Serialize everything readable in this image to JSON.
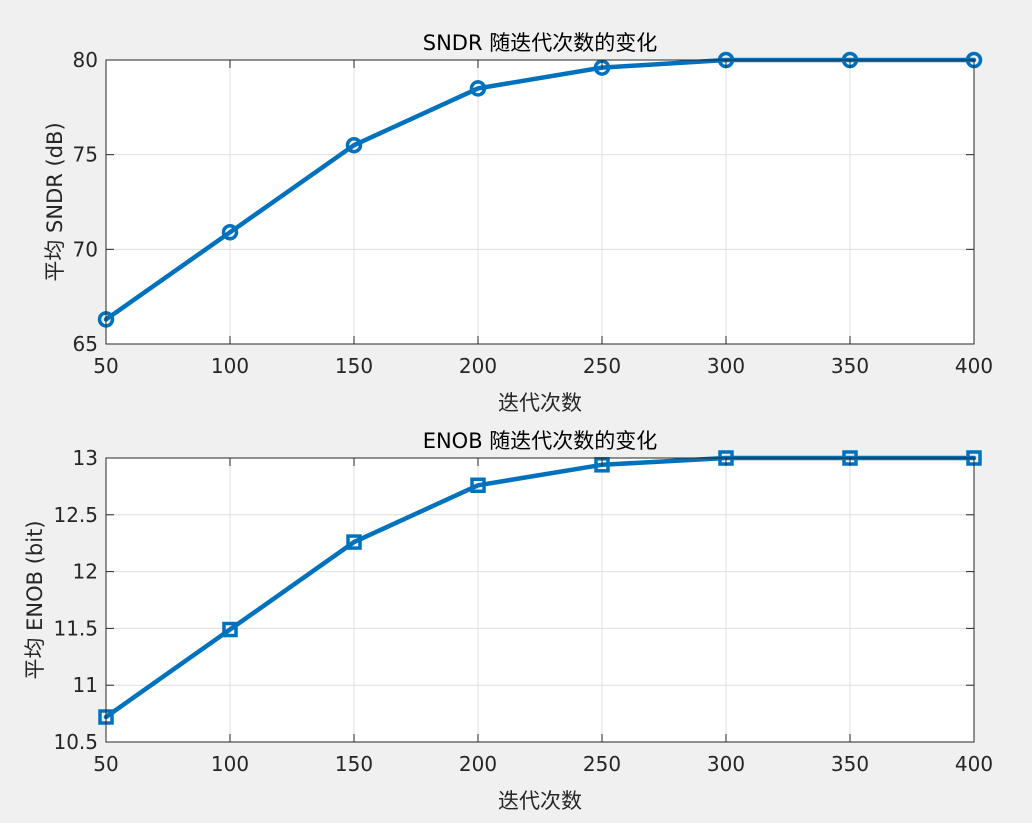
{
  "figure": {
    "background": "#f0f0f0",
    "axes_background": "#ffffff",
    "line_color": "#0072bd",
    "grid_color": "#dfdfdf",
    "axis_color": "#262626"
  },
  "chart_data": [
    {
      "type": "line",
      "title": "SNDR 随迭代次数的变化",
      "xlabel": "迭代次数",
      "ylabel": "平均 SNDR (dB)",
      "xlim": [
        50,
        400
      ],
      "ylim": [
        65,
        80
      ],
      "xticks": [
        50,
        100,
        150,
        200,
        250,
        300,
        350,
        400
      ],
      "yticks": [
        65,
        70,
        75,
        80
      ],
      "ytick_labels": [
        "65",
        "70",
        "75",
        "80"
      ],
      "grid": true,
      "marker": "circle",
      "series": [
        {
          "x": [
            50,
            100,
            150,
            200,
            250,
            300,
            350,
            400
          ],
          "values": [
            66.3,
            70.9,
            75.5,
            78.5,
            79.6,
            80.0,
            80.0,
            80.0
          ]
        }
      ]
    },
    {
      "type": "line",
      "title": "ENOB 随迭代次数的变化",
      "xlabel": "迭代次数",
      "ylabel": "平均 ENOB (bit)",
      "xlim": [
        50,
        400
      ],
      "ylim": [
        10.5,
        13
      ],
      "xticks": [
        50,
        100,
        150,
        200,
        250,
        300,
        350,
        400
      ],
      "yticks": [
        10.5,
        11,
        11.5,
        12,
        12.5,
        13
      ],
      "ytick_labels": [
        "10.5",
        "11",
        "11.5",
        "12",
        "12.5",
        "13"
      ],
      "grid": true,
      "marker": "square",
      "series": [
        {
          "x": [
            50,
            100,
            150,
            200,
            250,
            300,
            350,
            400
          ],
          "values": [
            10.72,
            11.49,
            12.26,
            12.76,
            12.94,
            13.0,
            13.0,
            13.0
          ]
        }
      ]
    }
  ]
}
